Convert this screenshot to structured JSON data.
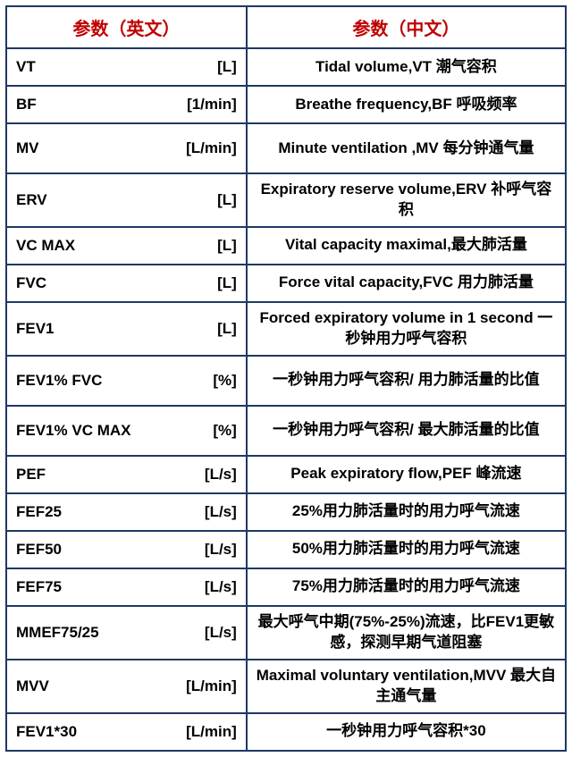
{
  "table": {
    "type": "table",
    "border_color": "#1f3864",
    "header_text_color": "#c00000",
    "cell_text_color": "#000000",
    "background_color": "#ffffff",
    "font_size_header": 20,
    "font_size_cell": 17,
    "columns": {
      "left_header": "参数（英文）",
      "right_header": "参数（中文）"
    },
    "rows": [
      {
        "name": "VT",
        "unit": "[L]",
        "desc": "Tidal volume,VT 潮气容积",
        "tall": false
      },
      {
        "name": "BF",
        "unit": "[1/min]",
        "desc": "Breathe frequency,BF 呼吸频率",
        "tall": false
      },
      {
        "name": "MV",
        "unit": "[L/min]",
        "desc": "Minute ventilation ,MV 每分钟通气量",
        "tall": true
      },
      {
        "name": "ERV",
        "unit": "[L]",
        "desc": "Expiratory reserve volume,ERV 补呼气容积",
        "tall": true
      },
      {
        "name": "VC MAX",
        "unit": "[L]",
        "desc": "Vital capacity maximal,最大肺活量",
        "tall": false
      },
      {
        "name": "FVC",
        "unit": "[L]",
        "desc": "Force vital capacity,FVC 用力肺活量",
        "tall": false
      },
      {
        "name": "FEV1",
        "unit": "[L]",
        "desc": "Forced expiratory volume in 1 second 一秒钟用力呼气容积",
        "tall": true
      },
      {
        "name": "FEV1% FVC",
        "unit": "[%]",
        "desc": "一秒钟用力呼气容积/ 用力肺活量的比值",
        "tall": true
      },
      {
        "name": "FEV1% VC MAX",
        "unit": "[%]",
        "desc": "一秒钟用力呼气容积/ 最大肺活量的比值",
        "tall": true
      },
      {
        "name": "PEF",
        "unit": "[L/s]",
        "desc": "Peak expiratory flow,PEF 峰流速",
        "tall": false
      },
      {
        "name": "FEF25",
        "unit": "[L/s]",
        "desc": "25%用力肺活量时的用力呼气流速",
        "tall": false
      },
      {
        "name": "FEF50",
        "unit": "[L/s]",
        "desc": "50%用力肺活量时的用力呼气流速",
        "tall": false
      },
      {
        "name": "FEF75",
        "unit": "[L/s]",
        "desc": "75%用力肺活量时的用力呼气流速",
        "tall": false
      },
      {
        "name": "MMEF75/25",
        "unit": "[L/s]",
        "desc": "最大呼气中期(75%-25%)流速，比FEV1更敏感，探测早期气道阻塞",
        "tall": true
      },
      {
        "name": "MVV",
        "unit": "[L/min]",
        "desc": "Maximal voluntary ventilation,MVV 最大自主通气量",
        "tall": true
      },
      {
        "name": "FEV1*30",
        "unit": "[L/min]",
        "desc": "一秒钟用力呼气容积*30",
        "tall": false
      }
    ]
  }
}
